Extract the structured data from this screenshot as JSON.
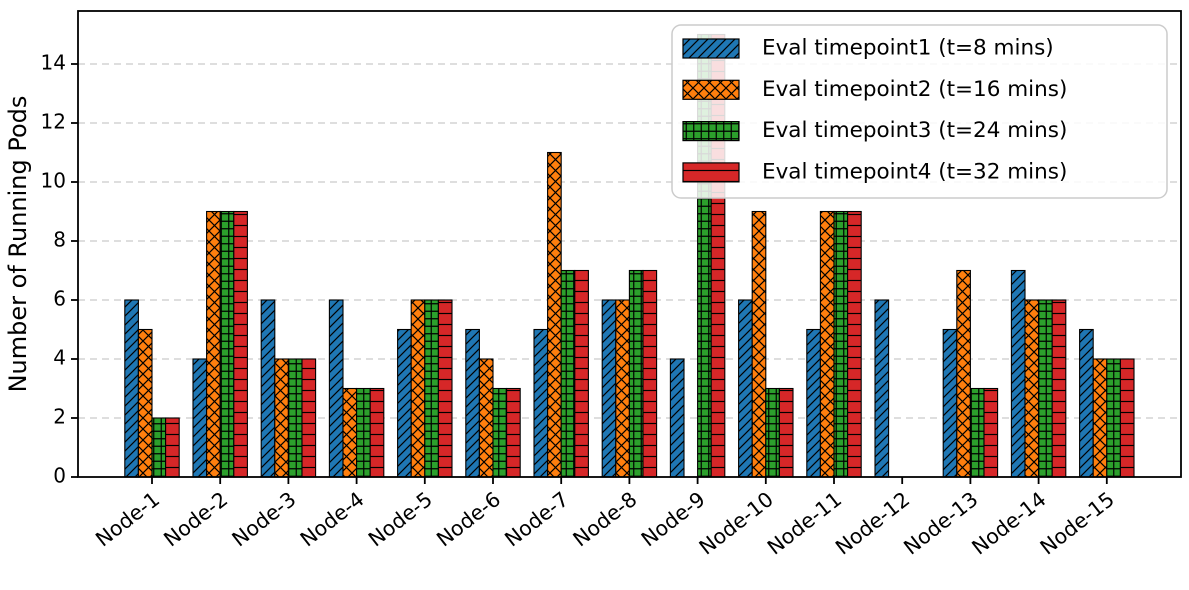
{
  "figure": {
    "title": "",
    "background_color": "#ffffff",
    "axis_color": "#000000",
    "grid_color": "#c9c9c9",
    "legend_border_color": "#cccccc",
    "legend_background": "#ffffff"
  },
  "chart_data": {
    "type": "bar",
    "title": "",
    "xlabel": "",
    "ylabel": "Number of Running Pods",
    "categories": [
      "Node-1",
      "Node-2",
      "Node-3",
      "Node-4",
      "Node-5",
      "Node-6",
      "Node-7",
      "Node-8",
      "Node-9",
      "Node-10",
      "Node-11",
      "Node-12",
      "Node-13",
      "Node-14",
      "Node-15"
    ],
    "series": [
      {
        "name": "Eval timepoint1 (t=8 mins)",
        "color": "#1f77b4",
        "hatch": "diagonal",
        "values": [
          6,
          4,
          6,
          6,
          5,
          5,
          5,
          6,
          4,
          6,
          5,
          6,
          5,
          7,
          5
        ]
      },
      {
        "name": "Eval timepoint2 (t=16 mins)",
        "color": "#ff7f0e",
        "hatch": "cross",
        "values": [
          5,
          9,
          4,
          3,
          6,
          4,
          11,
          6,
          0,
          9,
          9,
          0,
          7,
          6,
          4
        ]
      },
      {
        "name": "Eval timepoint3 (t=24 mins)",
        "color": "#2ca02c",
        "hatch": "grid",
        "values": [
          2,
          9,
          4,
          3,
          6,
          3,
          7,
          7,
          15,
          3,
          9,
          0,
          3,
          6,
          4
        ]
      },
      {
        "name": "Eval timepoint4 (t=32 mins)",
        "color": "#d62728",
        "hatch": "horizontal",
        "values": [
          2,
          9,
          4,
          3,
          6,
          3,
          7,
          7,
          15,
          3,
          9,
          0,
          3,
          6,
          4
        ]
      }
    ],
    "yticks": [
      0,
      2,
      4,
      6,
      8,
      10,
      12,
      14
    ],
    "ylim": [
      0,
      15.8
    ],
    "grid": "horizontal-dashed",
    "legend_position": "upper right",
    "x_tick_rotation": -38
  }
}
